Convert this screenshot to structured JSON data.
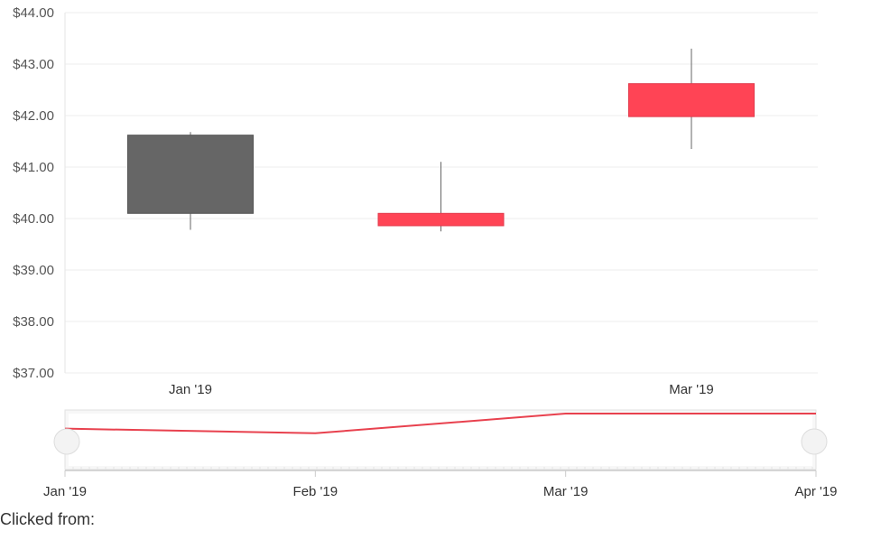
{
  "chart_data": {
    "type": "candlestick",
    "y_axis": {
      "min": 37,
      "max": 44,
      "ticks": [
        "$37.00",
        "$38.00",
        "$39.00",
        "$40.00",
        "$41.00",
        "$42.00",
        "$43.00",
        "$44.00"
      ]
    },
    "x_axis_labels": [
      {
        "label": "Jan '19",
        "month": 0
      },
      {
        "label": "Mar '19",
        "month": 2
      }
    ],
    "candles": [
      {
        "month": 0,
        "open": 40.1,
        "high": 41.68,
        "low": 39.78,
        "close": 41.62,
        "direction": "up"
      },
      {
        "month": 1,
        "open": 40.1,
        "high": 41.1,
        "low": 39.75,
        "close": 39.86,
        "direction": "down"
      },
      {
        "month": 2,
        "open": 42.62,
        "high": 43.3,
        "low": 41.35,
        "close": 41.98,
        "direction": "down"
      }
    ],
    "navigator": {
      "series": [
        {
          "month": 0,
          "value": 40.7
        },
        {
          "month": 1,
          "value": 40.5
        },
        {
          "month": 2,
          "value": 41.35
        },
        {
          "month": 3,
          "value": 41.35
        }
      ],
      "range": {
        "min": 39.75,
        "max": 41.35
      },
      "labels": [
        {
          "label": "Jan '19",
          "month": 0
        },
        {
          "label": "Feb '19",
          "month": 1
        },
        {
          "label": "Mar '19",
          "month": 2
        },
        {
          "label": "Apr '19",
          "month": 3
        }
      ]
    },
    "colors": {
      "up": "#666666",
      "down": "#ff4455",
      "navigator_line": "#e8414e",
      "grid": "#eeeeee"
    }
  },
  "footer": {
    "clicked_label": "Clicked from:"
  }
}
